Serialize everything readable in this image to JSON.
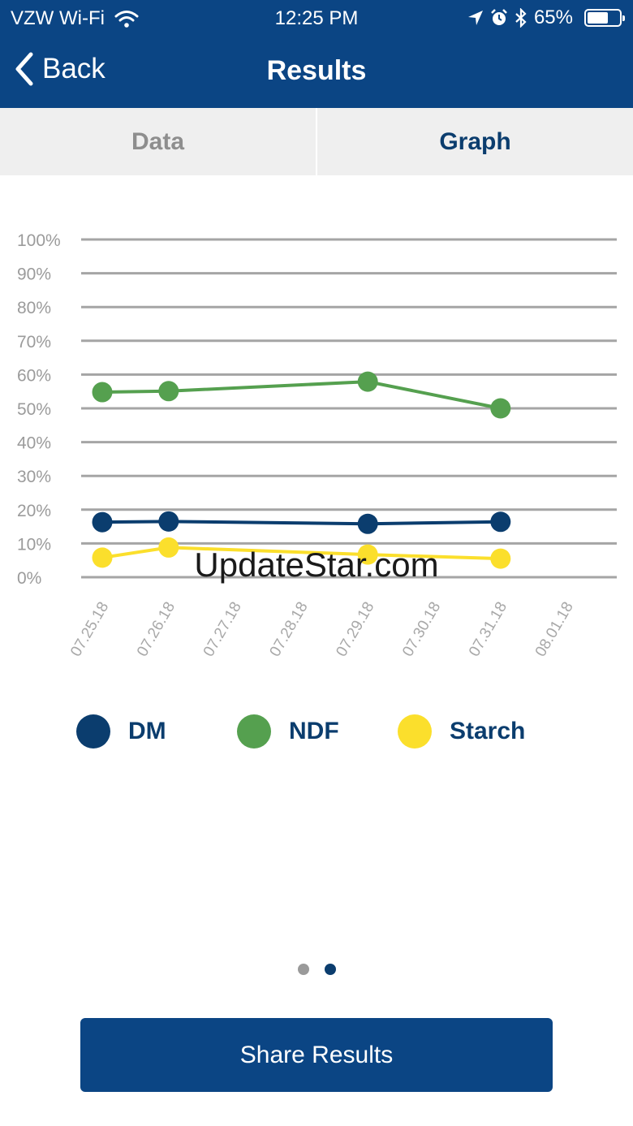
{
  "status_bar": {
    "carrier": "VZW Wi-Fi",
    "time": "12:25 PM",
    "battery": "65%",
    "battery_level": 0.65,
    "icons": [
      "wifi-icon",
      "location-arrow-icon",
      "alarm-icon",
      "bluetooth-icon",
      "battery-icon"
    ]
  },
  "nav": {
    "back_label": "Back",
    "title": "Results"
  },
  "tabs": [
    {
      "label": "Data",
      "active": false
    },
    {
      "label": "Graph",
      "active": true
    }
  ],
  "chart_data": {
    "type": "line",
    "title": "",
    "xlabel": "",
    "ylabel": "",
    "ylim": [
      0,
      100
    ],
    "yticks": [
      "100%",
      "90%",
      "80%",
      "70%",
      "60%",
      "50%",
      "40%",
      "30%",
      "20%",
      "10%",
      "0%"
    ],
    "categories": [
      "07.25.18",
      "07.26.18",
      "07.27.18",
      "07.28.18",
      "07.29.18",
      "07.30.18",
      "07.31.18",
      "08.01.18"
    ],
    "grid": true,
    "legend_position": "bottom",
    "series": [
      {
        "name": "DM",
        "color": "#0b3d6e",
        "points": [
          [
            "07.25.18",
            16.3
          ],
          [
            "07.26.18",
            16.5
          ],
          [
            "07.29.18",
            15.8
          ],
          [
            "07.31.18",
            16.4
          ]
        ]
      },
      {
        "name": "NDF",
        "color": "#55a04f",
        "points": [
          [
            "07.25.18",
            54.8
          ],
          [
            "07.26.18",
            55.1
          ],
          [
            "07.29.18",
            57.9
          ],
          [
            "07.31.18",
            50.0
          ]
        ]
      },
      {
        "name": "Starch",
        "color": "#fbdf2c",
        "points": [
          [
            "07.25.18",
            5.8
          ],
          [
            "07.26.18",
            8.8
          ],
          [
            "07.29.18",
            6.7
          ],
          [
            "07.31.18",
            5.5
          ]
        ]
      }
    ]
  },
  "legend": [
    {
      "label": "DM",
      "color": "#0b3d6e"
    },
    {
      "label": "NDF",
      "color": "#55a04f"
    },
    {
      "label": "Starch",
      "color": "#fbdf2c"
    }
  ],
  "pager": {
    "count": 2,
    "active_index": 1,
    "active_color": "#0b3d6e",
    "inactive_color": "#9a9a9a"
  },
  "share_button": {
    "label": "Share Results"
  },
  "watermark": "UpdateStar.com"
}
